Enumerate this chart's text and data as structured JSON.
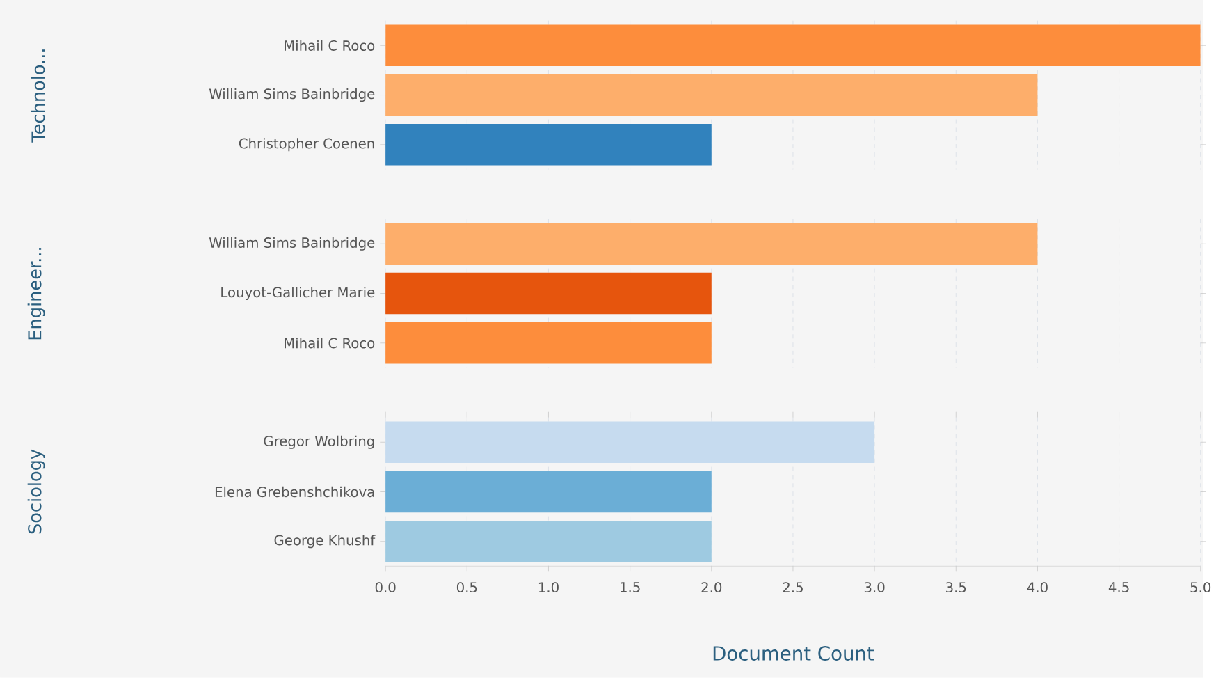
{
  "chart_data": [
    {
      "type": "bar",
      "orientation": "horizontal",
      "ylabel": "Technolo...",
      "categories": [
        "Mihail C Roco",
        "William Sims Bainbridge",
        "Christopher Coenen"
      ],
      "values": [
        5,
        4,
        2
      ],
      "colors": [
        "#fd8d3c",
        "#fdae6b",
        "#3182bd"
      ],
      "xlim": [
        0,
        5
      ],
      "grid": "x",
      "tick_labels": "y"
    },
    {
      "type": "bar",
      "orientation": "horizontal",
      "ylabel": "Engineer...",
      "categories": [
        "William Sims Bainbridge",
        "Louyot-Gallicher Marie",
        "Mihail C Roco"
      ],
      "values": [
        4,
        2,
        2
      ],
      "colors": [
        "#fdae6b",
        "#e6550d",
        "#fd8d3c"
      ],
      "xlim": [
        0,
        5
      ],
      "grid": "x",
      "tick_labels": "y"
    },
    {
      "type": "bar",
      "orientation": "horizontal",
      "ylabel": "Sociology",
      "xlabel": "Document Count",
      "categories": [
        "Gregor Wolbring",
        "Elena Grebenshchikova",
        "George Khushf"
      ],
      "values": [
        3,
        2,
        2
      ],
      "colors": [
        "#c6dbef",
        "#6baed6",
        "#9ecae1"
      ],
      "xlim": [
        0,
        5
      ],
      "xticks": [
        {
          "value": 0,
          "label": "0.0"
        },
        {
          "value": 0.5,
          "label": "0.5"
        },
        {
          "value": 1,
          "label": "1.0"
        },
        {
          "value": 1.5,
          "label": "1.5"
        },
        {
          "value": 2,
          "label": "2.0"
        },
        {
          "value": 2.5,
          "label": "2.5"
        },
        {
          "value": 3,
          "label": "3.0"
        },
        {
          "value": 3.5,
          "label": "3.5"
        },
        {
          "value": 4,
          "label": "4.0"
        },
        {
          "value": 4.5,
          "label": "4.5"
        },
        {
          "value": 5,
          "label": "5.0"
        }
      ],
      "grid": "x"
    }
  ]
}
